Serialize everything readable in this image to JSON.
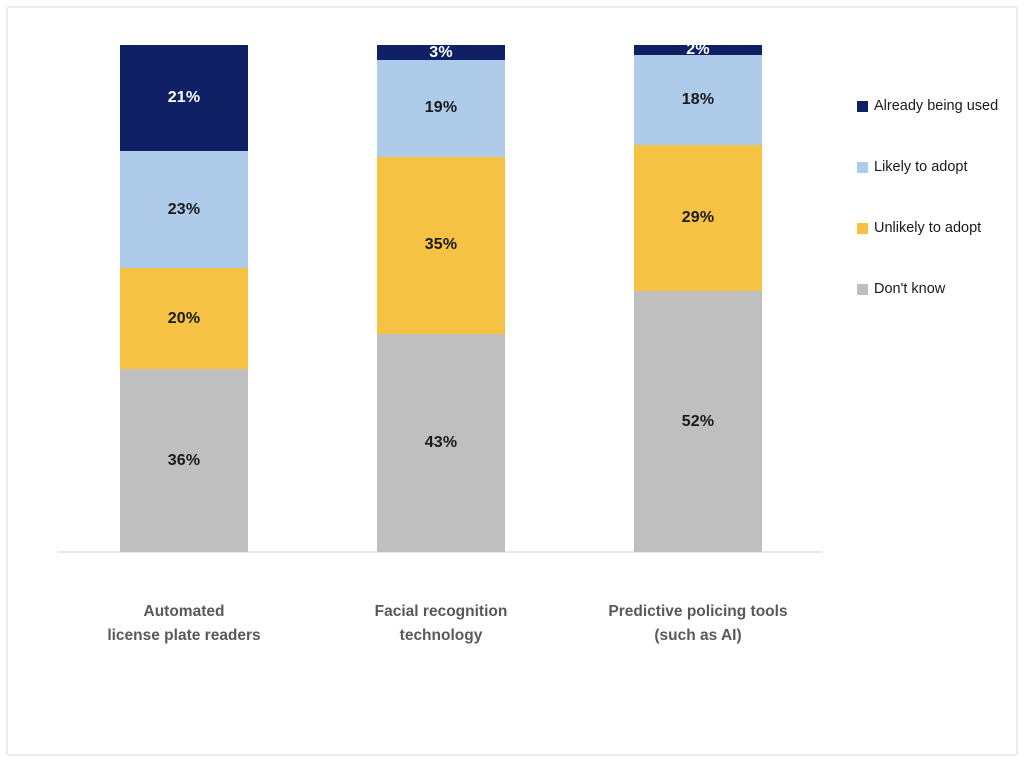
{
  "chart_data": {
    "type": "bar",
    "stacked": true,
    "orientation": "vertical",
    "title": "",
    "xlabel": "",
    "ylabel": "",
    "value_suffix": "%",
    "axis_visible": false,
    "grid": false,
    "legend_position": "right",
    "categories": [
      {
        "label": "Automated license plate readers",
        "line1": "Automated",
        "line2": "license plate readers"
      },
      {
        "label": "Facial recognition technology",
        "line1": "Facial recognition",
        "line2": "technology"
      },
      {
        "label": "Predictive policing tools (such as AI)",
        "line1": "Predictive policing tools",
        "line2": "(such as AI)"
      }
    ],
    "series": [
      {
        "name": "Already being used",
        "color": "#0f2164",
        "label_color": "#ffffff",
        "values": [
          21,
          3,
          2
        ]
      },
      {
        "name": "Likely to adopt",
        "color": "#aecbe9",
        "label_color": "#1a1a1a",
        "values": [
          23,
          19,
          18
        ]
      },
      {
        "name": "Unlikely to adopt",
        "color": "#f5c243",
        "label_color": "#1a1a1a",
        "values": [
          20,
          35,
          29
        ]
      },
      {
        "name": "Don't know",
        "color": "#bfbfbf",
        "label_color": "#1a1a1a",
        "values": [
          36,
          43,
          52
        ]
      }
    ],
    "colors": {
      "category_text": "#595959",
      "legend_text": "#1a1a1a",
      "baseline": "#e9e9e9",
      "frame_border": "#ececec"
    }
  }
}
